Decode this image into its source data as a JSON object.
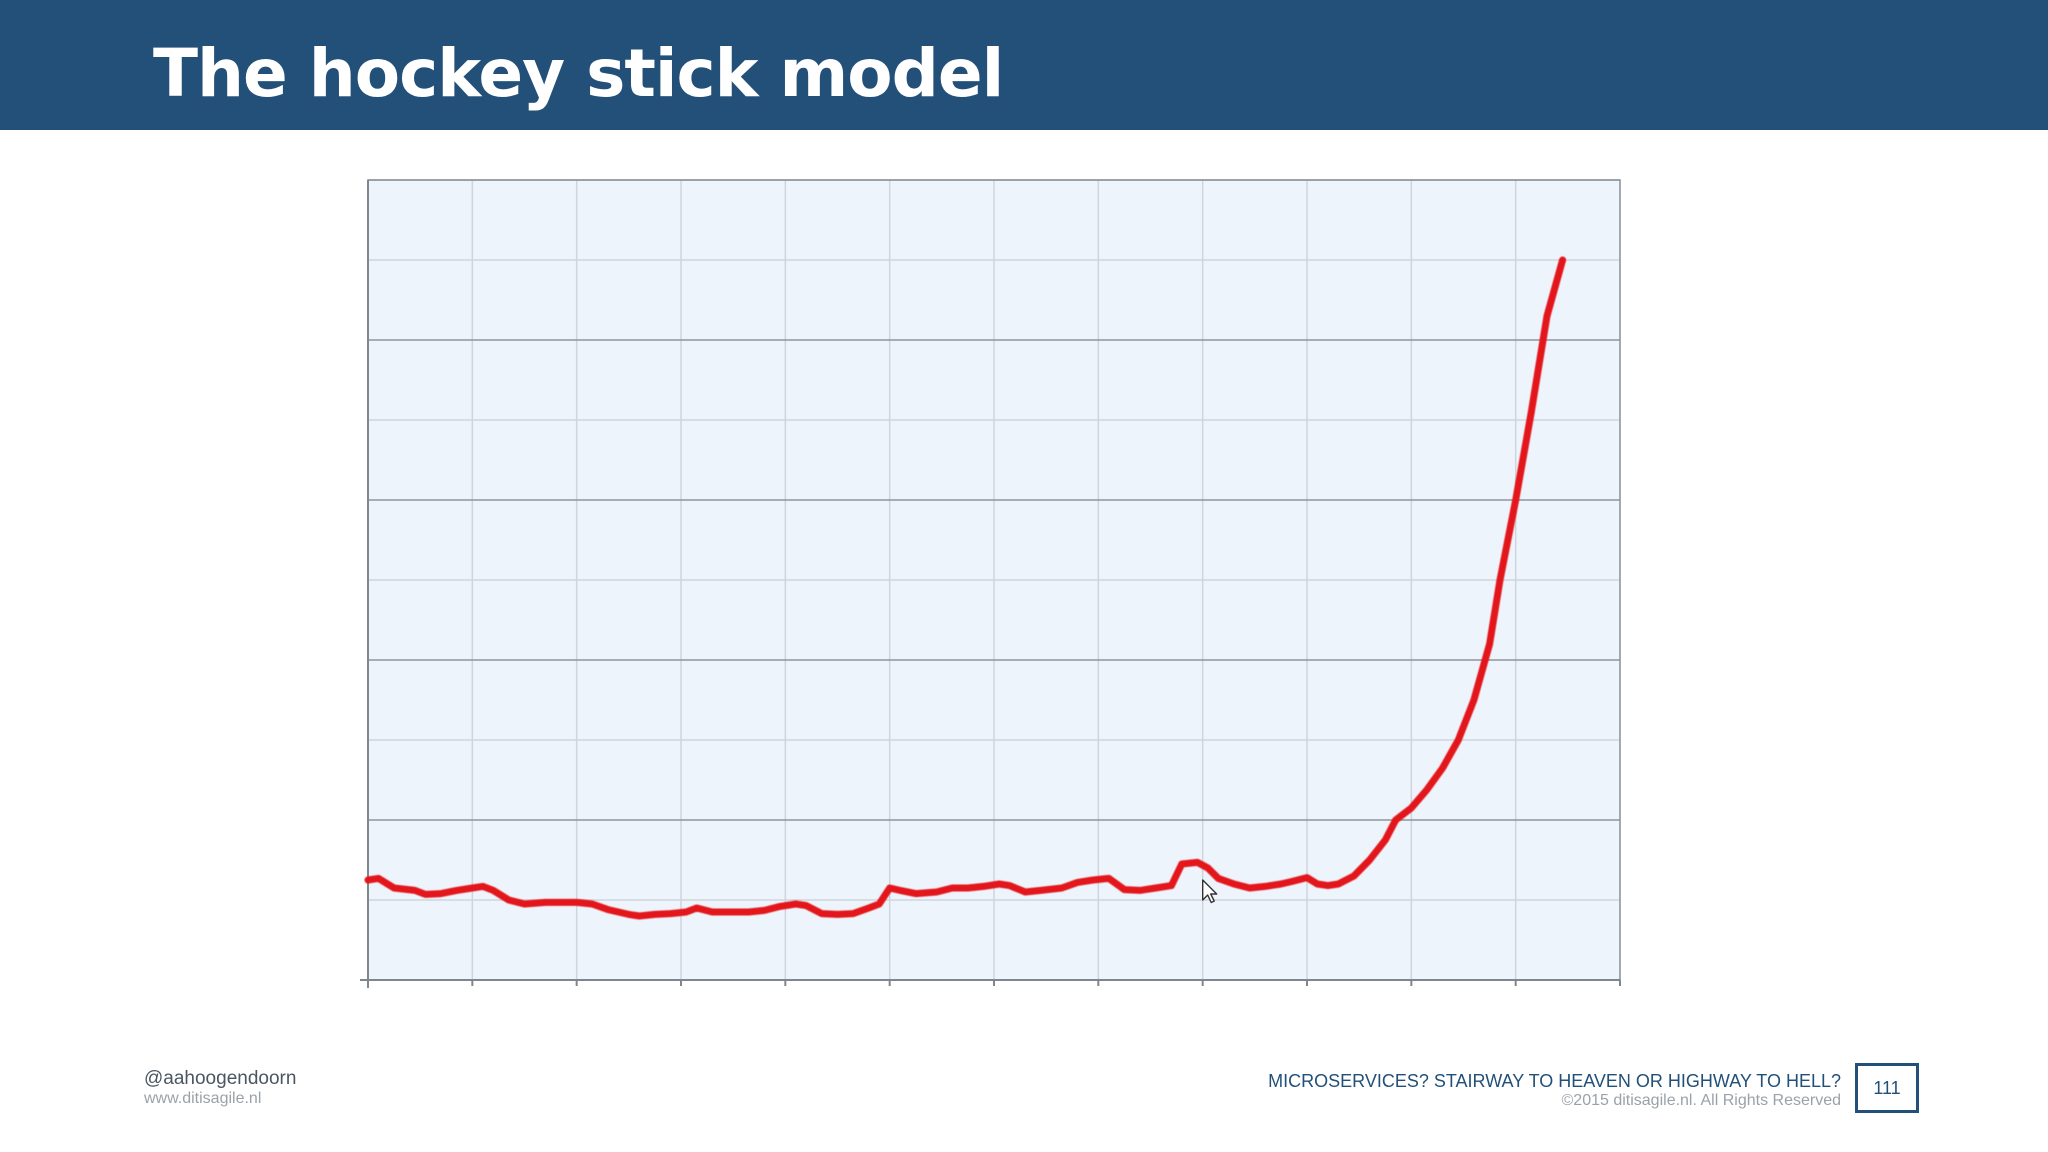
{
  "slide": {
    "title": "The hockey stick model",
    "page_number": "111"
  },
  "footer": {
    "handle": "@aahoogendoorn",
    "website": "www.ditisagile.nl",
    "talk_title": "MICROSERVICES? STAIRWAY TO HEAVEN OR HIGHWAY TO HELL?",
    "copyright": "©2015 ditisagile.nl. All Rights Reserved"
  },
  "colors": {
    "header_bar": "#225078",
    "line": "#e3191c",
    "plot_background": "#eef4fb",
    "major_grid": "#8e959c",
    "minor_grid": "#cdd5de"
  },
  "chart_data": {
    "type": "line",
    "title": "",
    "xlabel": "",
    "ylabel": "",
    "xlim": [
      0,
      12
    ],
    "ylim": [
      0,
      10
    ],
    "grid": true,
    "legend": "none",
    "annotations": [
      {
        "kind": "cursor-icon",
        "x": 8.0,
        "y": 1.25
      }
    ],
    "series": [
      {
        "color": "#e3191c",
        "points": [
          [
            0.0,
            1.25
          ],
          [
            0.1,
            1.27
          ],
          [
            0.25,
            1.15
          ],
          [
            0.45,
            1.12
          ],
          [
            0.55,
            1.07
          ],
          [
            0.7,
            1.08
          ],
          [
            0.85,
            1.12
          ],
          [
            1.0,
            1.15
          ],
          [
            1.1,
            1.17
          ],
          [
            1.2,
            1.12
          ],
          [
            1.35,
            1.0
          ],
          [
            1.5,
            0.95
          ],
          [
            1.7,
            0.97
          ],
          [
            2.0,
            0.97
          ],
          [
            2.15,
            0.95
          ],
          [
            2.3,
            0.88
          ],
          [
            2.5,
            0.82
          ],
          [
            2.6,
            0.8
          ],
          [
            2.75,
            0.82
          ],
          [
            2.9,
            0.83
          ],
          [
            3.05,
            0.85
          ],
          [
            3.15,
            0.9
          ],
          [
            3.3,
            0.85
          ],
          [
            3.5,
            0.85
          ],
          [
            3.65,
            0.85
          ],
          [
            3.8,
            0.87
          ],
          [
            3.95,
            0.92
          ],
          [
            4.1,
            0.95
          ],
          [
            4.2,
            0.93
          ],
          [
            4.35,
            0.83
          ],
          [
            4.5,
            0.82
          ],
          [
            4.65,
            0.83
          ],
          [
            4.8,
            0.9
          ],
          [
            4.9,
            0.95
          ],
          [
            5.0,
            1.15
          ],
          [
            5.1,
            1.12
          ],
          [
            5.25,
            1.08
          ],
          [
            5.45,
            1.1
          ],
          [
            5.6,
            1.15
          ],
          [
            5.75,
            1.15
          ],
          [
            5.9,
            1.17
          ],
          [
            6.05,
            1.2
          ],
          [
            6.15,
            1.18
          ],
          [
            6.3,
            1.1
          ],
          [
            6.45,
            1.12
          ],
          [
            6.65,
            1.15
          ],
          [
            6.8,
            1.22
          ],
          [
            6.95,
            1.25
          ],
          [
            7.1,
            1.27
          ],
          [
            7.25,
            1.13
          ],
          [
            7.4,
            1.12
          ],
          [
            7.55,
            1.15
          ],
          [
            7.7,
            1.18
          ],
          [
            7.8,
            1.45
          ],
          [
            7.95,
            1.47
          ],
          [
            8.05,
            1.4
          ],
          [
            8.15,
            1.27
          ],
          [
            8.3,
            1.2
          ],
          [
            8.45,
            1.15
          ],
          [
            8.6,
            1.17
          ],
          [
            8.75,
            1.2
          ],
          [
            8.85,
            1.23
          ],
          [
            9.0,
            1.28
          ],
          [
            9.1,
            1.2
          ],
          [
            9.2,
            1.18
          ],
          [
            9.3,
            1.2
          ],
          [
            9.45,
            1.3
          ],
          [
            9.6,
            1.5
          ],
          [
            9.75,
            1.75
          ],
          [
            9.85,
            2.0
          ],
          [
            10.0,
            2.15
          ],
          [
            10.15,
            2.38
          ],
          [
            10.3,
            2.65
          ],
          [
            10.45,
            3.0
          ],
          [
            10.6,
            3.5
          ],
          [
            10.75,
            4.2
          ],
          [
            10.85,
            5.0
          ],
          [
            11.0,
            6.0
          ],
          [
            11.15,
            7.1
          ],
          [
            11.3,
            8.3
          ],
          [
            11.45,
            9.0
          ]
        ]
      }
    ]
  }
}
